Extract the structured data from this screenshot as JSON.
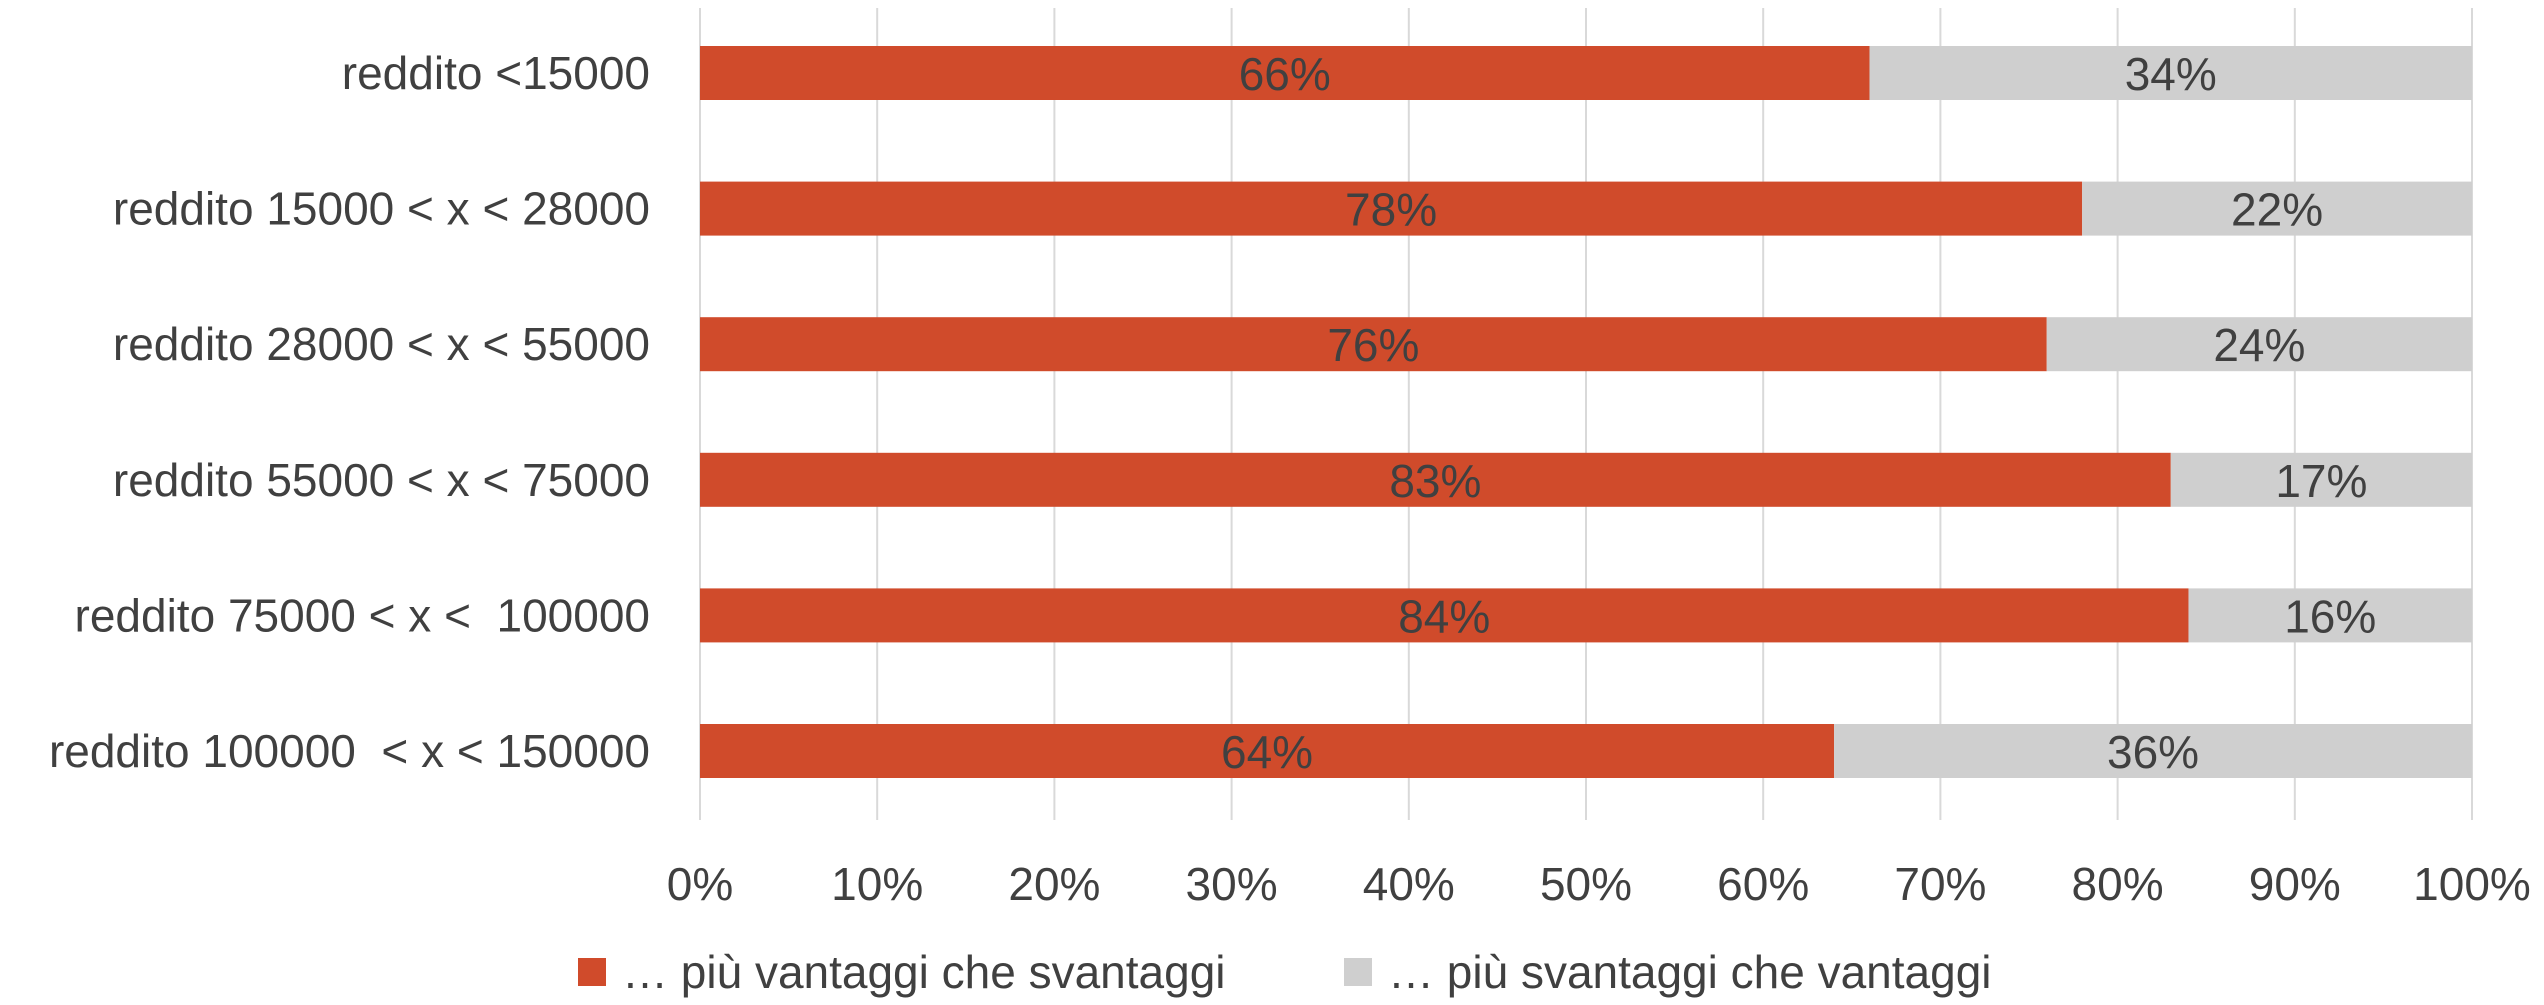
{
  "chart_data": {
    "type": "bar",
    "orientation": "horizontal",
    "stacked": "percent",
    "categories": [
      "reddito <15000",
      "reddito 15000 < x < 28000",
      "reddito 28000 < x < 55000",
      "reddito 55000 < x < 75000",
      "reddito 75000 < x <  100000",
      "reddito 100000  < x < 150000"
    ],
    "series": [
      {
        "name": "… più vantaggi che svantaggi",
        "color": "#D04B2B",
        "values": [
          0.66,
          0.78,
          0.76,
          0.83,
          0.84,
          0.64
        ],
        "labels": [
          "66%",
          "78%",
          "76%",
          "83%",
          "84%",
          "64%"
        ]
      },
      {
        "name": "… più svantaggi che vantaggi",
        "color": "#CFCFCF",
        "values": [
          0.34,
          0.22,
          0.24,
          0.17,
          0.16,
          0.36
        ],
        "labels": [
          "34%",
          "22%",
          "24%",
          "17%",
          "16%",
          "36%"
        ]
      }
    ],
    "x_ticks": [
      "0%",
      "10%",
      "20%",
      "30%",
      "40%",
      "50%",
      "60%",
      "70%",
      "80%",
      "90%",
      "100%"
    ],
    "xlim": [
      0,
      1
    ],
    "title": "",
    "xlabel": "",
    "ylabel": "",
    "grid": "vertical",
    "legend": "bottom",
    "colors": {
      "label_text": "#404040",
      "gridline": "#D9D9D9"
    }
  }
}
